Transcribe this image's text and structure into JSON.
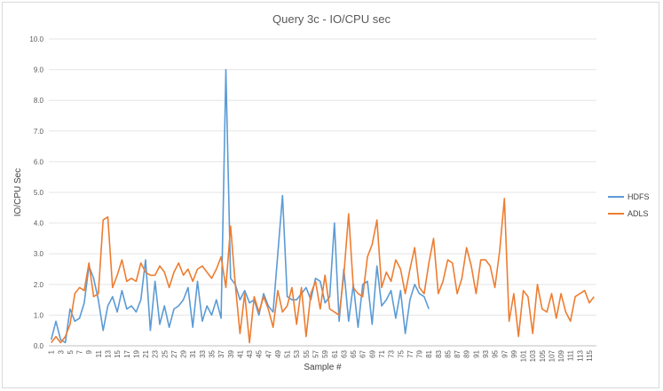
{
  "chart_data": {
    "type": "line",
    "title": "Query 3c - IO/CPU sec",
    "xlabel": "Sample #",
    "ylabel": "IO/CPU Sec",
    "ylim": [
      0,
      10
    ],
    "yticks": [
      "0.0",
      "1.0",
      "2.0",
      "3.0",
      "4.0",
      "5.0",
      "6.0",
      "7.0",
      "8.0",
      "9.0",
      "10.0"
    ],
    "xtick_step": 2,
    "legend_position": "right",
    "grid": "horizontal",
    "series": [
      {
        "name": "HDFS",
        "color": "#5b9bd5",
        "values": [
          0.2,
          0.8,
          0.2,
          0.1,
          1.2,
          0.8,
          0.9,
          1.4,
          2.6,
          2.2,
          1.5,
          0.5,
          1.3,
          1.6,
          1.1,
          1.8,
          1.2,
          1.3,
          1.1,
          1.5,
          2.8,
          0.5,
          2.1,
          0.7,
          1.3,
          0.6,
          1.2,
          1.3,
          1.5,
          1.9,
          0.6,
          2.1,
          0.8,
          1.3,
          1.0,
          1.5,
          0.9,
          9.0,
          2.2,
          2.0,
          1.5,
          1.8,
          1.4,
          1.5,
          1.0,
          1.7,
          1.3,
          1.1,
          3.0,
          4.9,
          1.6,
          1.5,
          1.5,
          1.7,
          1.9,
          1.5,
          2.2,
          2.1,
          1.4,
          1.6,
          4.0,
          0.8,
          2.5,
          0.8,
          2.0,
          0.6,
          2.0,
          2.1,
          0.7,
          2.6,
          1.3,
          1.5,
          1.8,
          0.9,
          1.8,
          0.4,
          1.5,
          2.0,
          1.7,
          1.6,
          1.2
        ]
      },
      {
        "name": "ADLS",
        "color": "#ed7d31",
        "values": [
          0.1,
          0.3,
          0.1,
          0.3,
          0.7,
          1.7,
          1.9,
          1.8,
          2.7,
          1.6,
          1.7,
          4.1,
          4.2,
          1.9,
          2.3,
          2.8,
          2.1,
          2.2,
          2.1,
          2.7,
          2.4,
          2.3,
          2.3,
          2.6,
          2.4,
          1.9,
          2.4,
          2.7,
          2.3,
          2.5,
          2.1,
          2.5,
          2.6,
          2.4,
          2.2,
          2.5,
          2.9,
          1.9,
          3.9,
          2.0,
          0.4,
          1.7,
          0.1,
          1.6,
          1.1,
          1.6,
          1.2,
          0.6,
          1.8,
          1.1,
          1.3,
          1.9,
          0.7,
          1.9,
          0.3,
          1.7,
          2.1,
          1.2,
          2.3,
          1.2,
          1.1,
          1.0,
          2.3,
          4.3,
          1.9,
          1.7,
          1.6,
          2.9,
          3.3,
          4.1,
          1.9,
          2.4,
          2.1,
          2.8,
          2.5,
          1.7,
          2.5,
          3.2,
          1.9,
          1.7,
          2.7,
          3.5,
          1.7,
          2.1,
          2.8,
          2.7,
          1.7,
          2.2,
          3.2,
          2.6,
          1.7,
          2.8,
          2.8,
          2.6,
          1.9,
          3.1,
          4.8,
          0.8,
          1.7,
          0.3,
          1.8,
          1.6,
          0.4,
          2.0,
          1.2,
          1.1,
          1.7,
          0.9,
          1.7,
          1.1,
          0.8,
          1.6,
          1.7,
          1.8,
          1.4,
          1.6
        ]
      }
    ]
  }
}
